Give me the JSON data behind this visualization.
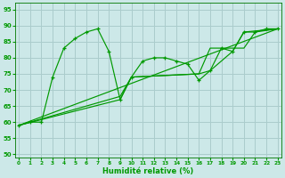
{
  "title": "",
  "xlabel": "Humidité relative (%)",
  "ylabel": "",
  "bg_color": "#cce8e8",
  "grid_color": "#aacccc",
  "line_color": "#009900",
  "xlim": [
    -0.3,
    23.3
  ],
  "ylim": [
    49,
    97
  ],
  "yticks": [
    50,
    55,
    60,
    65,
    70,
    75,
    80,
    85,
    90,
    95
  ],
  "xticks": [
    0,
    1,
    2,
    3,
    4,
    5,
    6,
    7,
    8,
    9,
    10,
    11,
    12,
    13,
    14,
    15,
    16,
    17,
    18,
    19,
    20,
    21,
    22,
    23
  ],
  "series_main": {
    "x": [
      0,
      1,
      2,
      3,
      4,
      5,
      6,
      7,
      8,
      9,
      10,
      11,
      12,
      13,
      14,
      15,
      16,
      17,
      18,
      19,
      20,
      21,
      22,
      23
    ],
    "y": [
      59,
      60,
      60,
      74,
      83,
      86,
      88,
      89,
      82,
      67,
      74,
      79,
      80,
      80,
      79,
      78,
      73,
      76,
      83,
      82,
      88,
      88,
      89,
      89
    ]
  },
  "series_trend1": {
    "x": [
      0,
      23
    ],
    "y": [
      59,
      89
    ]
  },
  "series_trend2": {
    "x": [
      0,
      9,
      10,
      16,
      17,
      20,
      21,
      23
    ],
    "y": [
      59,
      68,
      74,
      75,
      83,
      83,
      88,
      89
    ]
  },
  "series_trend3": {
    "x": [
      0,
      9,
      10,
      16,
      17,
      19,
      20,
      23
    ],
    "y": [
      59,
      67,
      74,
      75,
      76,
      82,
      88,
      89
    ]
  }
}
